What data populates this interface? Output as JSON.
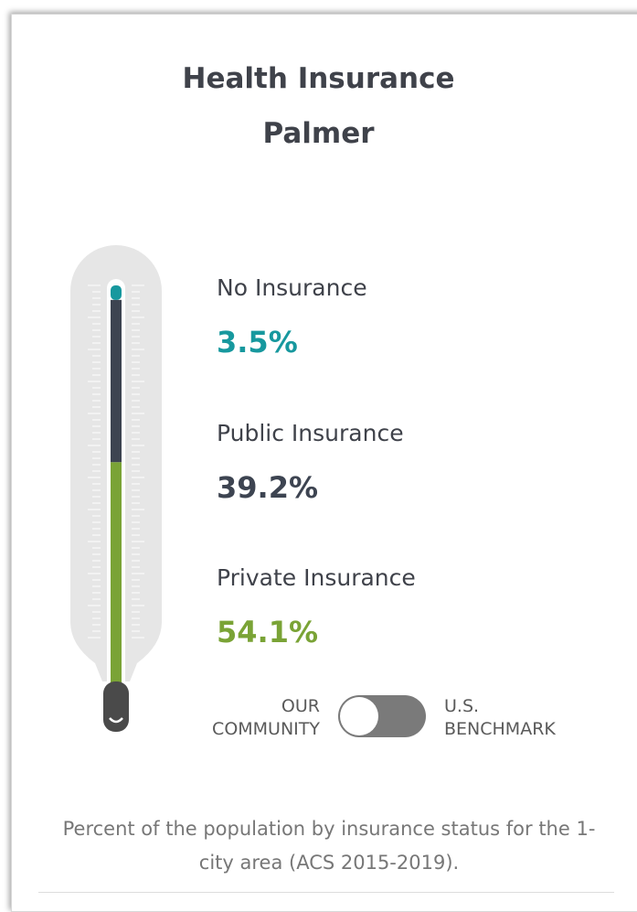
{
  "chart_data": {
    "type": "thermometer",
    "title": "Health Insurance",
    "subtitle": "Palmer",
    "categories": [
      "No Insurance",
      "Public Insurance",
      "Private Insurance"
    ],
    "values": [
      3.5,
      39.2,
      54.1
    ],
    "value_labels": [
      "3.5%",
      "39.2%",
      "54.1%"
    ],
    "colors": [
      "#17989e",
      "#3d4451",
      "#7aa336"
    ],
    "toggle": {
      "left": "OUR COMMUNITY",
      "right": "U.S. BENCHMARK"
    },
    "caption": "Percent of the population by insurance status for the 1-city area (ACS 2015-2019)."
  }
}
